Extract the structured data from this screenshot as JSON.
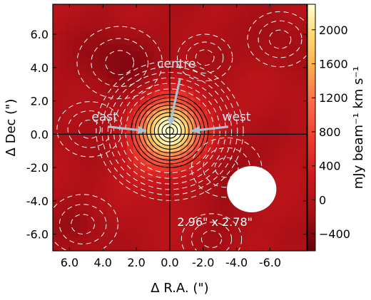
{
  "chart_data": {
    "type": "heatmap",
    "xlabel": "Δ R.A. (\")",
    "ylabel": "Δ Dec (\")",
    "x_ticks": [
      6.0,
      4.0,
      2.0,
      0.0,
      -2.0,
      -4.0,
      -6.0
    ],
    "x_tick_labels": [
      "6.0",
      "4.0",
      "2.0",
      "0.0",
      "-2.0",
      "-4.0",
      "-6.0"
    ],
    "y_ticks": [
      6.0,
      4.0,
      2.0,
      0.0,
      -2.0,
      -4.0,
      -6.0
    ],
    "y_tick_labels": [
      "6.0",
      "4.0",
      "2.0",
      "0.0",
      "-2.0",
      "-4.0",
      "-6.0"
    ],
    "xlim": [
      7.0,
      -8.2
    ],
    "ylim": [
      -7.0,
      7.8
    ],
    "colorbar": {
      "label": "mJy beam⁻¹ km s⁻¹",
      "ticks": [
        2000,
        1600,
        1200,
        800,
        400,
        0,
        -400
      ],
      "tick_labels": [
        "2000",
        "1600",
        "1200",
        "800",
        "400",
        "0",
        "−400"
      ],
      "range": [
        -600,
        2300
      ]
    },
    "source_peak": {
      "x": 0.0,
      "y": 0.2,
      "peak": 2300,
      "sigma": 1.35
    },
    "annotations": [
      {
        "text": "centre",
        "x": -0.4,
        "y": 4.0
      },
      {
        "text": "east",
        "x": 3.9,
        "y": 0.8
      },
      {
        "text": "west",
        "x": -4.0,
        "y": 0.8
      }
    ],
    "beam": {
      "label": "2.96\" x 2.78\"",
      "major_arcsec": 2.96,
      "minor_arcsec": 2.78,
      "x": -4.9,
      "y": -3.3
    },
    "crosshair": {
      "x": 0.0,
      "y": 0.0
    },
    "colors": {
      "colormap": [
        "#67000d",
        "#a50f15",
        "#cb181d",
        "#ef3b2c",
        "#fb6a4a",
        "#fcae52",
        "#fed976",
        "#ffffcc"
      ],
      "contour_positive": "#000000",
      "contour_negative": "#ffffff",
      "arrow": "#a9c2cf"
    }
  }
}
